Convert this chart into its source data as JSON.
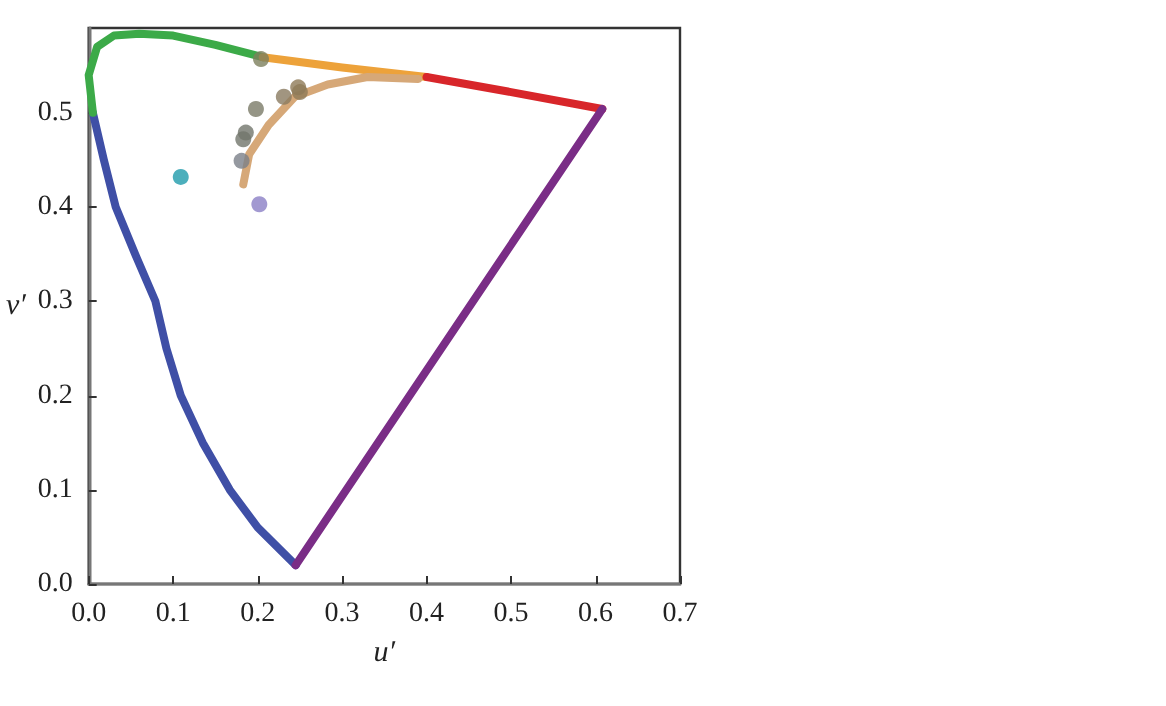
{
  "chart_data": {
    "type": "line",
    "xlabel": "u′",
    "ylabel": "v′",
    "xlim": [
      0,
      0.7
    ],
    "ylim": [
      0,
      0.59
    ],
    "xticks": [
      {
        "value": 0,
        "label": "0.0"
      },
      {
        "value": 0.1,
        "label": "0.1"
      },
      {
        "value": 0.2,
        "label": "0.2"
      },
      {
        "value": 0.3,
        "label": "0.3"
      },
      {
        "value": 0.4,
        "label": "0.4"
      },
      {
        "value": 0.5,
        "label": "0.5"
      },
      {
        "value": 0.6,
        "label": "0.6"
      },
      {
        "value": 0.7,
        "label": "0.7"
      }
    ],
    "yticks": [
      {
        "value": 0,
        "label": "0.0"
      },
      {
        "value": 0.1,
        "label": "0.1"
      },
      {
        "value": 0.2,
        "label": "0.2"
      },
      {
        "value": 0.3,
        "label": "0.3"
      },
      {
        "value": 0.4,
        "label": "0.4"
      },
      {
        "value": 0.5,
        "label": "0.5"
      }
    ],
    "grid": false,
    "series": [
      {
        "marker": "none",
        "color": "#3f4fa6",
        "x": [
          0.245,
          0.2,
          0.167,
          0.135,
          0.109,
          0.092,
          0.079,
          0.055,
          0.032,
          0.018,
          0.005
        ],
        "values": [
          0.02,
          0.06,
          0.1,
          0.15,
          0.2,
          0.25,
          0.3,
          0.35,
          0.4,
          0.45,
          0.5
        ]
      },
      {
        "marker": "none",
        "color": "#3caa48",
        "x": [
          0.005,
          0.0,
          0.01,
          0.03,
          0.06,
          0.1,
          0.15,
          0.206
        ],
        "values": [
          0.5,
          0.54,
          0.57,
          0.582,
          0.584,
          0.582,
          0.572,
          0.559
        ]
      },
      {
        "marker": "none",
        "color": "#eda23a",
        "x": [
          0.206,
          0.3,
          0.4
        ],
        "values": [
          0.559,
          0.548,
          0.538
        ]
      },
      {
        "marker": "none",
        "color": "#d8262a",
        "x": [
          0.4,
          0.5,
          0.608
        ],
        "values": [
          0.538,
          0.522,
          0.504
        ]
      },
      {
        "marker": "none",
        "color": "#7a2d86",
        "x": [
          0.245,
          0.608
        ],
        "values": [
          0.02,
          0.504
        ]
      },
      {
        "marker": "none",
        "color": "#d6a878",
        "x": [
          0.183,
          0.19,
          0.213,
          0.244,
          0.283,
          0.33,
          0.39
        ],
        "values": [
          0.424,
          0.456,
          0.487,
          0.517,
          0.53,
          0.538,
          0.536
        ]
      },
      {
        "type": "scatter",
        "marker": "circle",
        "x": [
          0.204,
          0.198,
          0.186,
          0.183,
          0.181,
          0.231,
          0.248,
          0.25,
          0.109,
          0.202
        ],
        "values": [
          0.557,
          0.504,
          0.479,
          0.472,
          0.449,
          0.517,
          0.527,
          0.522,
          0.432,
          0.403
        ],
        "colors": [
          "#7d7f5c",
          "#7a7a68",
          "#72766c",
          "#72766c",
          "#7a8088",
          "#8a7a60",
          "#8e7a58",
          "#8e7a58",
          "#1f9bab",
          "#8b80c6"
        ]
      }
    ]
  }
}
